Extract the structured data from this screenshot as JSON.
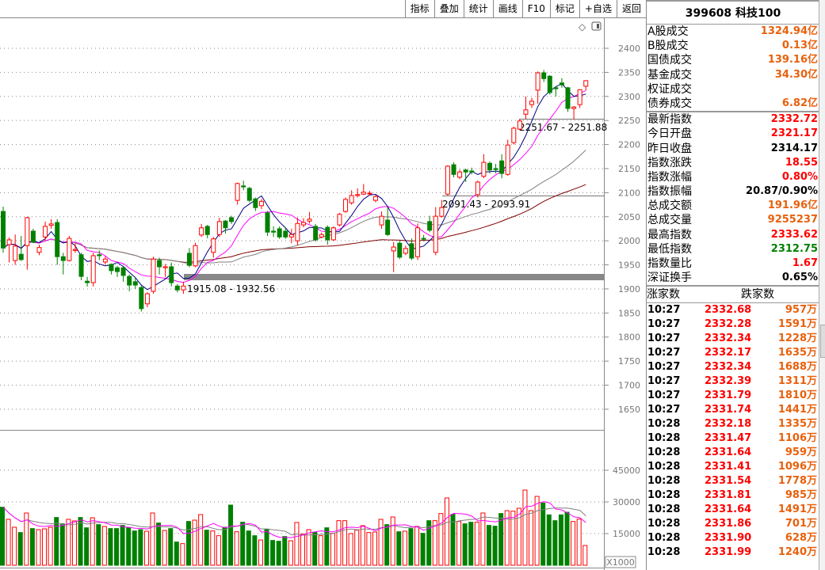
{
  "toolbar": {
    "buttons": [
      "指标",
      "叠加",
      "统计",
      "画线",
      "F10",
      "标记",
      "+自选",
      "返回"
    ]
  },
  "chart_icons": [
    "diamond-icon",
    "panel-toggle-icon"
  ],
  "price_axis": {
    "labels": [
      "2400",
      "2350",
      "2300",
      "2250",
      "2200",
      "2150",
      "2100",
      "2050",
      "2000",
      "1950",
      "1900",
      "1850",
      "1800",
      "1750",
      "1700",
      "1650"
    ]
  },
  "volume_axis": {
    "labels": [
      "45000",
      "30000",
      "15000"
    ],
    "unit": "X1000"
  },
  "annotations": [
    {
      "text": "1915.08 - 1932.56",
      "low": 1915.08,
      "high": 1932.56
    },
    {
      "text": "2091.43 - 2093.91",
      "low": 2091.43,
      "high": 2093.91
    },
    {
      "text": "2251.67 - 2251.88",
      "low": 2251.67,
      "high": 2251.88
    }
  ],
  "colors": {
    "up": "#ff0000",
    "down": "#008000",
    "ma5": "#000080",
    "ma10": "#ff00ff",
    "ma30": "#808080",
    "ma60": "#800000",
    "value_orange": "#e8600c"
  },
  "chart_data": {
    "type": "candlestick",
    "ohlc": [
      [
        2061,
        2071,
        1975,
        1985
      ],
      [
        1992,
        2007,
        1955,
        2002
      ],
      [
        1959,
        2013,
        1950,
        1989
      ],
      [
        1972,
        2010,
        1958,
        1961
      ],
      [
        1990,
        2050,
        1940,
        2048
      ],
      [
        2020,
        2025,
        1995,
        1997
      ],
      [
        1976,
        1992,
        1970,
        1986
      ],
      [
        2008,
        2040,
        2000,
        2030
      ],
      [
        2032,
        2045,
        2025,
        2035
      ],
      [
        2038,
        2045,
        1950,
        1967
      ],
      [
        1967,
        1975,
        1930,
        1959
      ],
      [
        1959,
        2010,
        1957,
        2005
      ],
      [
        1980,
        1995,
        1975,
        1982
      ],
      [
        1971,
        1975,
        1918,
        1926
      ],
      [
        1916,
        1925,
        1905,
        1913
      ],
      [
        1913,
        1975,
        1905,
        1969
      ],
      [
        1971,
        1980,
        1960,
        1969
      ],
      [
        1956,
        1968,
        1950,
        1962
      ],
      [
        1951,
        1953,
        1930,
        1938
      ],
      [
        1944,
        1948,
        1925,
        1936
      ],
      [
        1944,
        1946,
        1915,
        1928
      ],
      [
        1926,
        1930,
        1895,
        1908
      ],
      [
        1915,
        1925,
        1900,
        1908
      ],
      [
        1903,
        1906,
        1853,
        1859
      ],
      [
        1869,
        1893,
        1862,
        1890
      ],
      [
        1895,
        1967,
        1890,
        1962
      ],
      [
        1959,
        1965,
        1930,
        1946
      ],
      [
        1944,
        1952,
        1925,
        1946
      ],
      [
        1946,
        1955,
        1905,
        1913
      ],
      [
        1906,
        1910,
        1893,
        1898
      ],
      [
        1898,
        1915,
        1890,
        1906
      ],
      [
        1974,
        1985,
        1945,
        1949
      ],
      [
        1948,
        1996,
        1945,
        1990
      ],
      [
        2012,
        2035,
        2008,
        2027
      ],
      [
        2030,
        2033,
        2005,
        2013
      ],
      [
        1976,
        2008,
        1965,
        2004
      ],
      [
        2013,
        2048,
        2008,
        2040
      ],
      [
        2041,
        2043,
        2015,
        2027
      ],
      [
        2048,
        2052,
        2035,
        2040
      ],
      [
        2084,
        2121,
        2075,
        2119
      ],
      [
        2114,
        2125,
        2105,
        2112
      ],
      [
        2109,
        2112,
        2080,
        2084
      ],
      [
        2087,
        2090,
        2062,
        2069
      ],
      [
        2073,
        2087,
        2066,
        2082
      ],
      [
        2058,
        2062,
        2010,
        2018
      ],
      [
        2020,
        2030,
        2008,
        2018
      ],
      [
        2025,
        2030,
        2004,
        2008
      ],
      [
        2020,
        2028,
        2004,
        2008
      ],
      [
        2008,
        2025,
        1995,
        2013
      ],
      [
        2000,
        2048,
        1990,
        2036
      ],
      [
        2033,
        2047,
        2028,
        2038
      ],
      [
        2041,
        2060,
        2036,
        2045
      ],
      [
        2030,
        2035,
        1998,
        2002
      ],
      [
        2008,
        2017,
        2005,
        2013
      ],
      [
        2028,
        2032,
        1992,
        2002
      ],
      [
        2002,
        2030,
        2000,
        2027
      ],
      [
        2033,
        2058,
        2030,
        2055
      ],
      [
        2061,
        2090,
        2058,
        2086
      ],
      [
        2079,
        2105,
        2075,
        2094
      ],
      [
        2094,
        2109,
        2090,
        2096
      ],
      [
        2097,
        2118,
        2095,
        2101
      ],
      [
        2099,
        2104,
        2094,
        2099
      ],
      [
        2084,
        2095,
        2080,
        2092
      ],
      [
        2033,
        2061,
        2025,
        2051
      ],
      [
        2043,
        2070,
        2010,
        2013
      ],
      [
        1979,
        1997,
        1935,
        1987
      ],
      [
        1995,
        2000,
        1962,
        1966
      ],
      [
        1974,
        1990,
        1970,
        1984
      ],
      [
        1994,
        2005,
        1960,
        1964
      ],
      [
        1967,
        2036,
        1960,
        2027
      ],
      [
        2005,
        2012,
        1999,
        2004
      ],
      [
        2040,
        2052,
        2018,
        2022
      ],
      [
        1976,
        2070,
        1970,
        2051
      ],
      [
        2051,
        2085,
        2048,
        2069
      ],
      [
        2097,
        2157,
        2094,
        2155
      ],
      [
        2158,
        2163,
        2132,
        2138
      ],
      [
        2132,
        2148,
        2128,
        2143
      ],
      [
        2147,
        2150,
        2122,
        2143
      ],
      [
        2145,
        2152,
        2138,
        2143
      ],
      [
        2096,
        2125,
        2090,
        2122
      ],
      [
        2134,
        2180,
        2130,
        2163
      ],
      [
        2161,
        2165,
        2140,
        2147
      ],
      [
        2150,
        2160,
        2140,
        2148
      ],
      [
        2166,
        2180,
        2130,
        2140
      ],
      [
        2138,
        2210,
        2135,
        2199
      ],
      [
        2204,
        2237,
        2200,
        2234
      ],
      [
        2232,
        2253,
        2230,
        2249
      ],
      [
        2263,
        2300,
        2252,
        2272
      ],
      [
        2283,
        2297,
        2276,
        2290
      ],
      [
        2313,
        2352,
        2285,
        2349
      ],
      [
        2349,
        2355,
        2330,
        2337
      ],
      [
        2342,
        2344,
        2304,
        2308
      ],
      [
        2318,
        2322,
        2300,
        2316
      ],
      [
        2328,
        2338,
        2318,
        2324
      ],
      [
        2318,
        2320,
        2268,
        2275
      ],
      [
        2275,
        2280,
        2252,
        2278
      ],
      [
        2283,
        2315,
        2276,
        2314
      ],
      [
        2321.17,
        2333.62,
        2312.75,
        2332.72
      ]
    ],
    "volume": [
      27500,
      21750,
      18000,
      15500,
      24750,
      17375,
      16875,
      17250,
      18000,
      22625,
      19625,
      21750,
      21000,
      22625,
      17750,
      22500,
      19250,
      18375,
      17375,
      17375,
      18875,
      17750,
      16250,
      16875,
      16125,
      24750,
      20000,
      16500,
      17375,
      11000,
      10250,
      20750,
      21375,
      24000,
      16625,
      16250,
      14000,
      18000,
      28500,
      15875,
      20375,
      16250,
      14000,
      12000,
      17000,
      11750,
      11375,
      13625,
      11625,
      20250,
      14750,
      16875,
      15625,
      14000,
      17750,
      15125,
      21125,
      21125,
      15000,
      16625,
      18750,
      15500,
      15750,
      21750,
      19250,
      22875,
      15875,
      16125,
      17375,
      18375,
      15125,
      21125,
      21125,
      24500,
      31875,
      24125,
      20750,
      19625,
      20375,
      20375,
      24750,
      18875,
      18500,
      24500,
      25875,
      25625,
      27000,
      35625,
      25875,
      32625,
      29500,
      23875,
      21125,
      23875,
      25125,
      20750,
      21875,
      9375
    ],
    "ylim": [
      1630,
      2420
    ],
    "volume_ylim": [
      0,
      52000
    ],
    "grid": true
  },
  "panel": {
    "title": "399608 科技100",
    "turnover": [
      {
        "label": "A股成交",
        "value": "1324.94亿",
        "color": "org"
      },
      {
        "label": "B股成交",
        "value": "0.13亿",
        "color": "org"
      },
      {
        "label": "国债成交",
        "value": "139.16亿",
        "color": "org"
      },
      {
        "label": "基金成交",
        "value": "34.30亿",
        "color": "org"
      },
      {
        "label": "权证成交",
        "value": "",
        "color": "org"
      },
      {
        "label": "债券成交",
        "value": "6.82亿",
        "color": "org"
      }
    ],
    "stats": [
      {
        "label": "最新指数",
        "value": "2332.72",
        "color": "red"
      },
      {
        "label": "今日开盘",
        "value": "2321.17",
        "color": "red"
      },
      {
        "label": "昨日收盘",
        "value": "2314.17",
        "color": "blk"
      },
      {
        "label": "指数涨跌",
        "value": "18.55",
        "color": "red"
      },
      {
        "label": "指数涨幅",
        "value": "0.80%",
        "color": "red"
      },
      {
        "label": "指数振幅",
        "value": "20.87/0.90%",
        "color": "blk"
      },
      {
        "label": "总成交额",
        "value": "191.96亿",
        "color": "org"
      },
      {
        "label": "总成交量",
        "value": "9255237",
        "color": "org"
      },
      {
        "label": "最高指数",
        "value": "2333.62",
        "color": "red"
      },
      {
        "label": "最低指数",
        "value": "2312.75",
        "color": "grn"
      },
      {
        "label": "指数量比",
        "value": "1.67",
        "color": "red"
      },
      {
        "label": "深证换手",
        "value": "0.65%",
        "color": "blk"
      }
    ],
    "breadth": {
      "up_label": "涨家数",
      "down_label": "跌家数"
    },
    "ticks": [
      [
        "10:27",
        "2332.68",
        "957万"
      ],
      [
        "10:27",
        "2332.28",
        "1591万"
      ],
      [
        "10:27",
        "2332.34",
        "1228万"
      ],
      [
        "10:27",
        "2332.17",
        "1635万"
      ],
      [
        "10:27",
        "2332.34",
        "1688万"
      ],
      [
        "10:27",
        "2332.39",
        "1311万"
      ],
      [
        "10:27",
        "2331.79",
        "1810万"
      ],
      [
        "10:27",
        "2331.74",
        "1441万"
      ],
      [
        "10:28",
        "2332.18",
        "1335万"
      ],
      [
        "10:28",
        "2331.47",
        "1106万"
      ],
      [
        "10:28",
        "2331.64",
        "959万"
      ],
      [
        "10:28",
        "2331.41",
        "1096万"
      ],
      [
        "10:28",
        "2331.54",
        "1778万"
      ],
      [
        "10:28",
        "2331.81",
        "985万"
      ],
      [
        "10:28",
        "2331.64",
        "1491万"
      ],
      [
        "10:28",
        "2331.86",
        "701万"
      ],
      [
        "10:28",
        "2331.90",
        "628万"
      ],
      [
        "10:28",
        "2331.99",
        "1240万"
      ]
    ]
  }
}
